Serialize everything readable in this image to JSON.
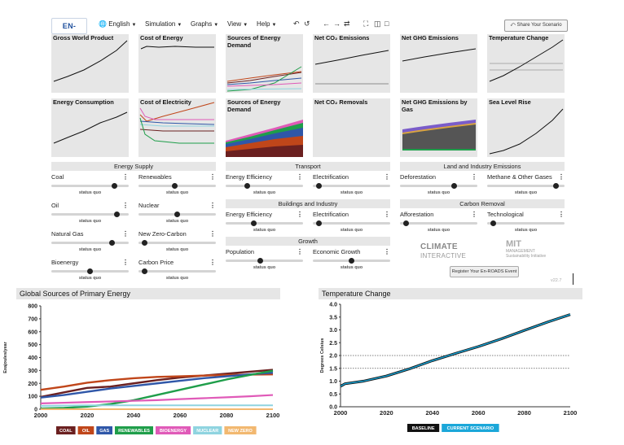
{
  "header": {
    "logo": "EN-ROADS",
    "menus": [
      {
        "icon": "globe-icon",
        "label": "English"
      },
      {
        "label": "Simulation"
      },
      {
        "label": "Graphs"
      },
      {
        "label": "View"
      },
      {
        "label": "Help"
      }
    ],
    "share_label": "Share Your Scenario"
  },
  "thumbnails": [
    {
      "title": "Gross World Product"
    },
    {
      "title": "Cost of Energy"
    },
    {
      "title": "Sources of Energy Demand"
    },
    {
      "title": "Net CO₂ Emissions"
    },
    {
      "title": "Net GHG Emissions"
    },
    {
      "title": "Temperature Change"
    },
    {
      "title": "Energy Consumption"
    },
    {
      "title": "Cost of Electricity"
    },
    {
      "title": "Sources of Energy Demand"
    },
    {
      "title": "Net CO₂ Removals"
    },
    {
      "title": "Net GHG Emissions by Gas"
    },
    {
      "title": "Sea Level Rise"
    }
  ],
  "sections": {
    "energy_supply": "Energy Supply",
    "transport": "Transport",
    "buildings": "Buildings and Industry",
    "growth": "Growth",
    "land": "Land and Industry Emissions",
    "carbon_removal": "Carbon Removal"
  },
  "sliders": [
    {
      "label": "Coal",
      "status": "status quo",
      "value": 0.84
    },
    {
      "label": "Renewables",
      "status": "status quo",
      "value": 0.47
    },
    {
      "label": "Oil",
      "status": "status quo",
      "value": 0.87
    },
    {
      "label": "Nuclear",
      "status": "status quo",
      "value": 0.5
    },
    {
      "label": "Natural Gas",
      "status": "status quo",
      "value": 0.81
    },
    {
      "label": "New Zero-Carbon",
      "status": "status quo",
      "value": 0.04
    },
    {
      "label": "Bioenergy",
      "status": "status quo",
      "value": 0.5
    },
    {
      "label": "Carbon Price",
      "status": "status quo",
      "value": 0.04
    },
    {
      "label": "Energy Efficiency",
      "status": "status quo",
      "value": 0.26
    },
    {
      "label": "Electrification",
      "status": "status quo",
      "value": 0.04
    },
    {
      "label": "Energy Efficiency",
      "status": "status quo",
      "value": 0.35
    },
    {
      "label": "Electrification",
      "status": "status quo",
      "value": 0.04
    },
    {
      "label": "Population",
      "status": "status quo",
      "value": 0.44
    },
    {
      "label": "Economic Growth",
      "status": "status quo",
      "value": 0.5
    },
    {
      "label": "Deforestation",
      "status": "status quo",
      "value": 0.72
    },
    {
      "label": "Methane & Other Gases",
      "status": "status quo",
      "value": 0.92
    },
    {
      "label": "Afforestation",
      "status": "status quo",
      "value": 0.04
    },
    {
      "label": "Technological",
      "status": "status quo",
      "value": 0.04
    }
  ],
  "logos": {
    "climate_interactive_line1": "CLIMATE",
    "climate_interactive_line2": "INTERACTIVE",
    "mit_line1": "MIT",
    "mit_line2": "MANAGEMENT",
    "mit_line3": "Sustainability Initiative"
  },
  "register_label": "Register Your En-ROADS Event",
  "version": "v22.7",
  "chart_data": [
    {
      "type": "line",
      "title": "Global Sources of Primary Energy",
      "ylabel": "Exajoules/year",
      "xlabel": "",
      "xlim": [
        2000,
        2100
      ],
      "ylim": [
        0,
        800
      ],
      "xticks": [
        2000,
        2020,
        2040,
        2060,
        2080,
        2100
      ],
      "yticks": [
        0,
        100,
        200,
        300,
        400,
        500,
        600,
        700,
        800
      ],
      "x": [
        2000,
        2010,
        2020,
        2030,
        2040,
        2050,
        2060,
        2070,
        2080,
        2090,
        2100
      ],
      "series": [
        {
          "name": "COAL",
          "color": "#6b2020",
          "values": [
            95,
            130,
            165,
            175,
            200,
            225,
            245,
            260,
            275,
            290,
            305
          ]
        },
        {
          "name": "OIL",
          "color": "#c0461a",
          "values": [
            150,
            175,
            205,
            225,
            240,
            250,
            255,
            260,
            265,
            268,
            270
          ]
        },
        {
          "name": "GAS",
          "color": "#2f57a8",
          "values": [
            90,
            110,
            135,
            160,
            180,
            200,
            220,
            240,
            255,
            270,
            282
          ]
        },
        {
          "name": "RENEWABLES",
          "color": "#1f9e4a",
          "values": [
            5,
            10,
            20,
            40,
            70,
            110,
            150,
            190,
            230,
            265,
            298
          ]
        },
        {
          "name": "BIOENERGY",
          "color": "#e05ab8",
          "values": [
            45,
            50,
            55,
            60,
            65,
            70,
            78,
            85,
            92,
            100,
            110
          ]
        },
        {
          "name": "NUCLEAR",
          "color": "#8fd4e0",
          "values": [
            25,
            28,
            30,
            30,
            30,
            30,
            30,
            30,
            30,
            30,
            30
          ]
        },
        {
          "name": "NEW ZERO",
          "color": "#f2b870",
          "values": [
            0,
            0,
            0,
            0,
            0,
            0,
            0,
            0,
            0,
            0,
            0
          ]
        }
      ]
    },
    {
      "type": "line",
      "title": "Temperature Change",
      "ylabel": "Degrees Celsius",
      "xlabel": "",
      "xlim": [
        2000,
        2100
      ],
      "ylim": [
        0,
        4
      ],
      "xticks": [
        2000,
        2020,
        2040,
        2060,
        2080,
        2100
      ],
      "yticks": [
        0.0,
        0.5,
        1.0,
        1.5,
        2.0,
        2.5,
        3.0,
        3.5,
        4.0
      ],
      "reference_lines": [
        1.5,
        2.0
      ],
      "x": [
        2000,
        2002,
        2010,
        2020,
        2030,
        2040,
        2050,
        2060,
        2070,
        2080,
        2090,
        2100
      ],
      "series": [
        {
          "name": "BASELINE",
          "color": "#111111",
          "values": [
            0.8,
            0.9,
            1.0,
            1.2,
            1.48,
            1.8,
            2.08,
            2.35,
            2.65,
            2.98,
            3.3,
            3.6
          ]
        },
        {
          "name": "CURRENT SCENARIO",
          "color": "#1ba7d9",
          "values": [
            0.8,
            0.9,
            1.0,
            1.2,
            1.48,
            1.8,
            2.08,
            2.35,
            2.65,
            2.98,
            3.3,
            3.6
          ]
        }
      ]
    }
  ]
}
